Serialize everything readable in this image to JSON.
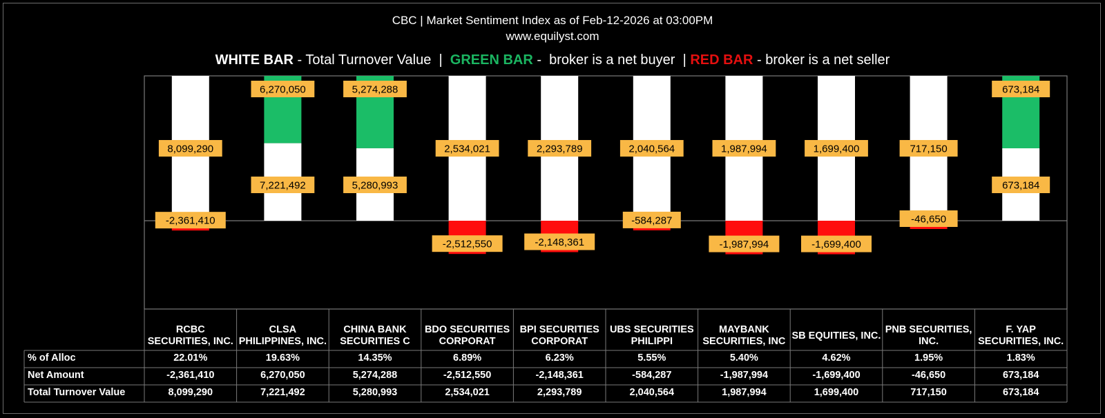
{
  "header": {
    "title": "CBC | Market Sentiment Index as of Feb-12-2026 at 03:00PM",
    "website": "www.equilyst.com"
  },
  "legend": {
    "white_label": "WHITE BAR",
    "white_desc": " - Total Turnover Value  |  ",
    "green_label": "GREEN BAR",
    "green_desc": " -  broker is a net buyer  | ",
    "red_label": "RED BAR",
    "red_desc": " - broker is a net seller"
  },
  "colors": {
    "turnover": "#ffffff",
    "net_buyer": "#1bbd67",
    "net_seller": "#ff0d0d",
    "label_bg": "#f9b845",
    "background": "#000000",
    "grid": "#7a7a7a"
  },
  "table": {
    "row_labels": [
      "% of Alloc",
      "Net Amount",
      "Total Turnover Value"
    ]
  },
  "chart_data": {
    "type": "bar",
    "categories": [
      "RCBC SECURITIES, INC.",
      "CLSA PHILIPPINES, INC.",
      "CHINA BANK SECURITIES C",
      "BDO SECURITIES CORPORAT",
      "BPI SECURITIES CORPORAT",
      "UBS SECURITIES PHILIPPI",
      "MAYBANK SECURITIES, INC",
      "SB EQUITIES, INC.",
      "PNB SECURITIES, INC.",
      "F. YAP SECURITIES, INC."
    ],
    "series": [
      {
        "name": "Total Turnover Value",
        "values": [
          8099290,
          7221492,
          5280993,
          2534021,
          2293789,
          2040564,
          1987994,
          1699400,
          717150,
          673184
        ]
      },
      {
        "name": "Net Amount",
        "values": [
          -2361410,
          6270050,
          5274288,
          -2512550,
          -2148361,
          -584287,
          -1987994,
          -1699400,
          -46650,
          673184
        ]
      }
    ],
    "pct_alloc": [
      "22.01%",
      "19.63%",
      "14.35%",
      "6.89%",
      "6.23%",
      "5.55%",
      "5.40%",
      "4.62%",
      "1.95%",
      "1.83%"
    ],
    "turnover_labels": [
      "8,099,290",
      "7,221,492",
      "5,280,993",
      "2,534,021",
      "2,293,789",
      "2,040,564",
      "1,987,994",
      "1,699,400",
      "717,150",
      "673,184"
    ],
    "net_labels": [
      "-2,361,410",
      "6,270,050",
      "5,274,288",
      "-2,512,550",
      "-2,148,361",
      "-584,287",
      "-1,987,994",
      "-1,699,400",
      "-46,650",
      "673,184"
    ],
    "legend_position": "top",
    "grid": false,
    "scales": "bars scaled per broker, not to a common axis"
  }
}
